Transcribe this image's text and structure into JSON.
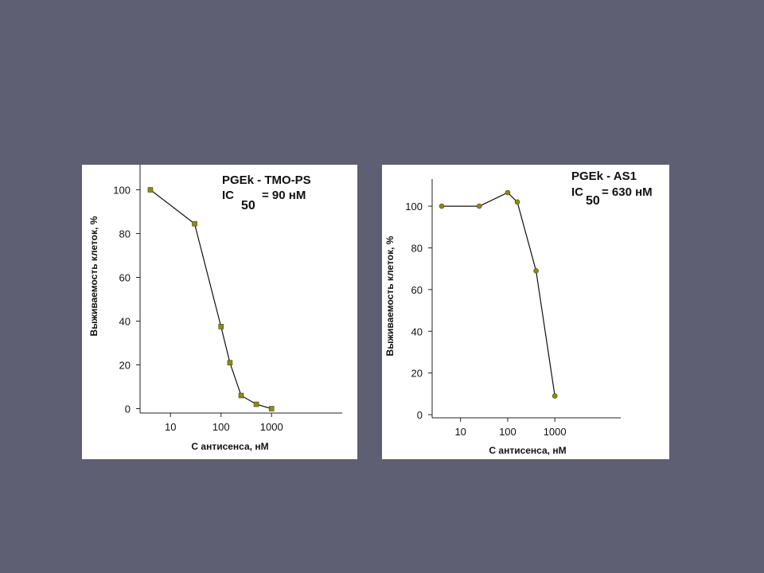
{
  "slide": {
    "background": "#5f5f73"
  },
  "chart_data": [
    {
      "type": "line",
      "title": "PGEk - TMO-PS",
      "annotation": {
        "prefix": "IC",
        "subscript": "50",
        "suffix": "= 90 нМ"
      },
      "xlabel": "С антисенса, нМ",
      "ylabel": "Выживаемость клеток, %",
      "x_scale": "log",
      "x_ticks": [
        10,
        100,
        1000
      ],
      "x_tick_labels": [
        "10",
        "100",
        "1000"
      ],
      "y_ticks": [
        0,
        20,
        40,
        60,
        80,
        100
      ],
      "y_tick_labels": [
        "0",
        "20",
        "40",
        "60",
        "80",
        "100"
      ],
      "xlim": [
        2.5,
        25000
      ],
      "ylim": [
        -2,
        110
      ],
      "marker": "square",
      "marker_color": "#8a8a1a",
      "line_color": "#111111",
      "grid": false,
      "series": [
        {
          "x": [
            4,
            30,
            100,
            150,
            250,
            500,
            1000
          ],
          "y": [
            100,
            84.5,
            37.5,
            21,
            6,
            2,
            0
          ]
        }
      ]
    },
    {
      "type": "line",
      "title": "PGEk - AS1",
      "annotation": {
        "prefix": "IC",
        "subscript": "50",
        "suffix": "= 630 нМ"
      },
      "xlabel": "С антисенса, нМ",
      "ylabel": "Выживаемость клеток, %",
      "x_scale": "log",
      "x_ticks": [
        10,
        100,
        1000
      ],
      "x_tick_labels": [
        "10",
        "100",
        "1000"
      ],
      "y_ticks": [
        0,
        20,
        40,
        60,
        80,
        100
      ],
      "y_tick_labels": [
        "0",
        "20",
        "40",
        "60",
        "80",
        "100"
      ],
      "xlim": [
        2.5,
        25000
      ],
      "ylim": [
        -1.5,
        113
      ],
      "marker": "circle",
      "marker_color": "#8a8a1a",
      "line_color": "#111111",
      "grid": false,
      "series": [
        {
          "x": [
            4,
            25,
            100,
            160,
            400,
            1000
          ],
          "y": [
            100,
            100,
            106.5,
            102,
            69,
            9
          ]
        }
      ]
    }
  ]
}
